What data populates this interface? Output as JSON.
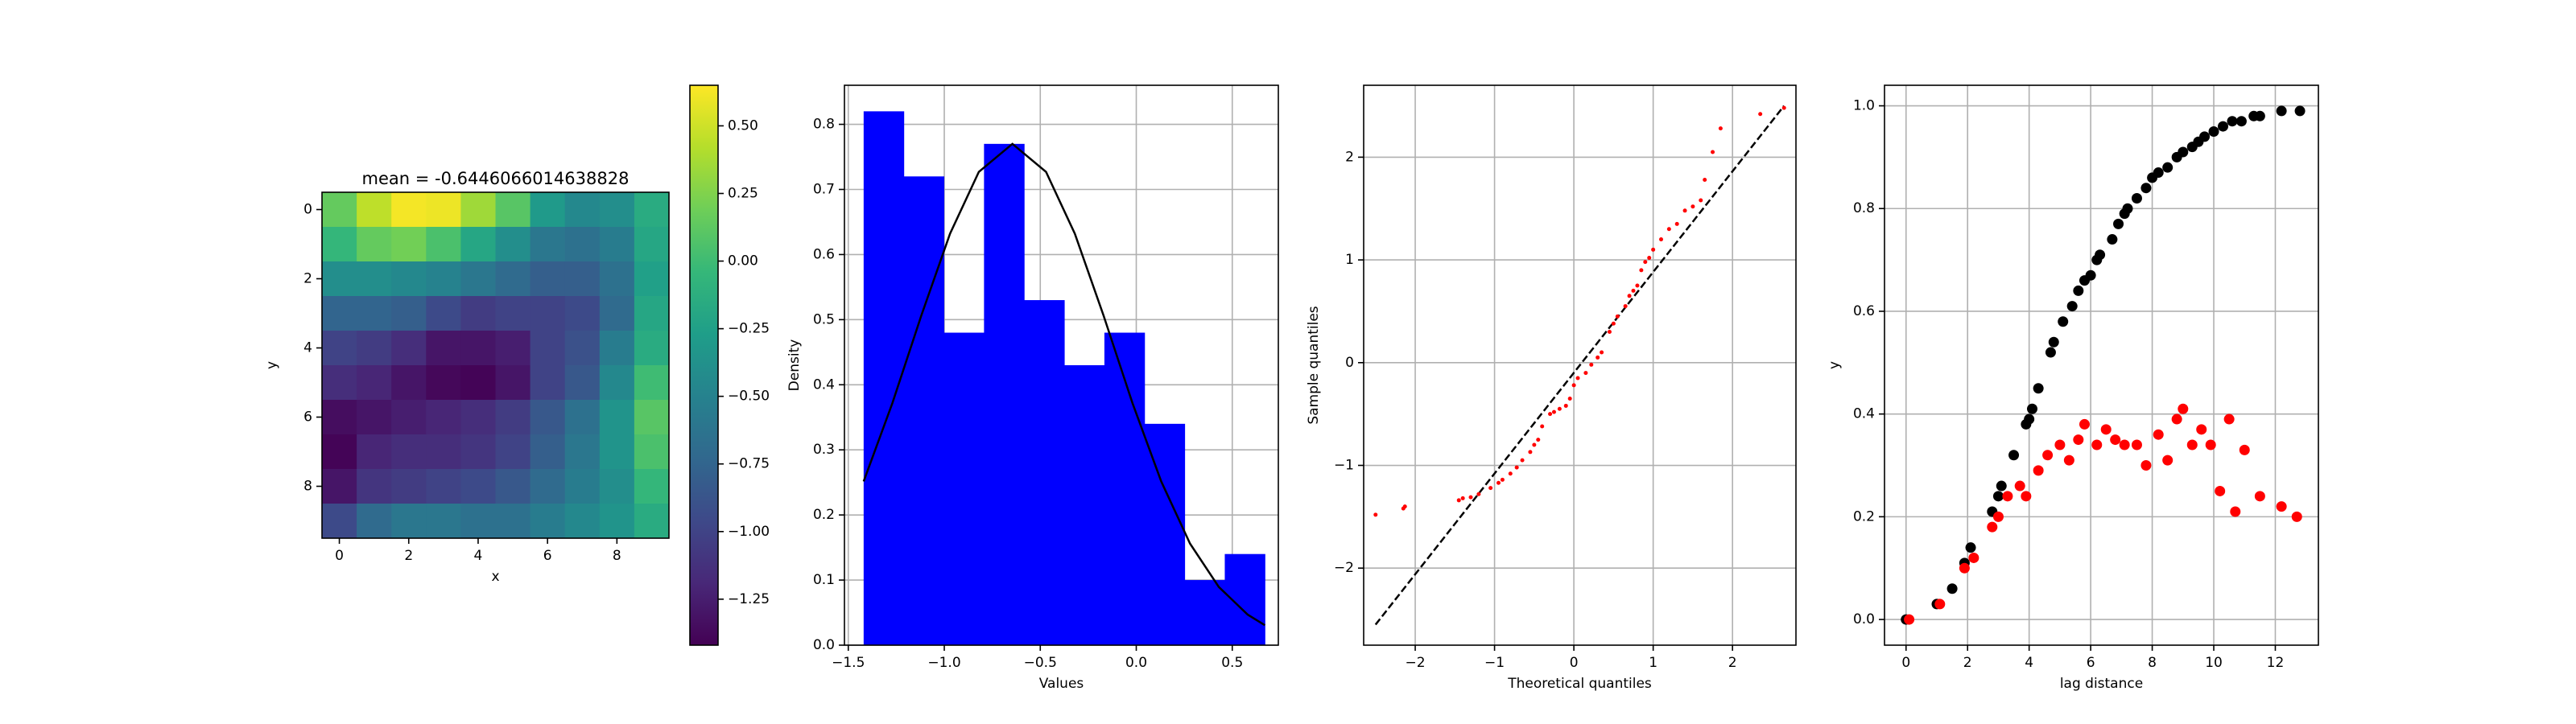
{
  "chart_data": [
    {
      "type": "heatmap",
      "title": "mean = -0.6446066014638828",
      "x_label": "x",
      "y_label": "y",
      "colormap": "viridis",
      "z": [
        [
          0.15,
          0.45,
          0.62,
          0.6,
          0.35,
          0.1,
          -0.3,
          -0.45,
          -0.4,
          -0.15
        ],
        [
          -0.05,
          0.15,
          0.2,
          0.05,
          -0.2,
          -0.4,
          -0.6,
          -0.65,
          -0.55,
          -0.2
        ],
        [
          -0.4,
          -0.4,
          -0.45,
          -0.5,
          -0.6,
          -0.7,
          -0.8,
          -0.8,
          -0.65,
          -0.25
        ],
        [
          -0.75,
          -0.75,
          -0.8,
          -0.95,
          -1.05,
          -1.0,
          -1.0,
          -0.95,
          -0.7,
          -0.2
        ],
        [
          -1.0,
          -1.05,
          -1.15,
          -1.3,
          -1.3,
          -1.25,
          -1.0,
          -0.9,
          -0.55,
          -0.15
        ],
        [
          -1.15,
          -1.2,
          -1.3,
          -1.38,
          -1.4,
          -1.3,
          -1.0,
          -0.85,
          -0.45,
          0.0
        ],
        [
          -1.35,
          -1.3,
          -1.25,
          -1.2,
          -1.15,
          -1.05,
          -0.85,
          -0.65,
          -0.35,
          0.1
        ],
        [
          -1.4,
          -1.2,
          -1.15,
          -1.15,
          -1.1,
          -1.0,
          -0.8,
          -0.6,
          -0.35,
          0.05
        ],
        [
          -1.3,
          -1.1,
          -1.05,
          -1.0,
          -0.95,
          -0.85,
          -0.7,
          -0.55,
          -0.4,
          -0.05
        ],
        [
          -0.95,
          -0.7,
          -0.6,
          -0.6,
          -0.65,
          -0.65,
          -0.55,
          -0.45,
          -0.35,
          -0.15
        ]
      ],
      "xlim": [
        -0.5,
        9.5
      ],
      "ylim": [
        9.5,
        -0.5
      ],
      "xticks": [
        0,
        2,
        4,
        6,
        8
      ],
      "yticks": [
        0,
        2,
        4,
        6,
        8
      ],
      "grid": false,
      "colorbar": {
        "lim": [
          -1.42,
          0.65
        ],
        "ticks": [
          {
            "value": 0.5,
            "label": "0.50"
          },
          {
            "value": 0.25,
            "label": "0.25"
          },
          {
            "value": 0,
            "label": "0.00"
          },
          {
            "value": -0.25,
            "label": "−0.25"
          },
          {
            "value": -0.5,
            "label": "−0.50"
          },
          {
            "value": -0.75,
            "label": "−0.75"
          },
          {
            "value": -1,
            "label": "−1.00"
          },
          {
            "value": -1.25,
            "label": "−1.25"
          }
        ]
      }
    },
    {
      "type": "histogram",
      "x_label": "Values",
      "y_label": "Density",
      "color": "#0000ff",
      "bins": [
        -1.42,
        -1.211,
        -1.002,
        -0.793,
        -0.584,
        -0.375,
        -0.166,
        0.043,
        0.252,
        0.461,
        0.67
      ],
      "values": [
        0.82,
        0.72,
        0.48,
        0.77,
        0.53,
        0.43,
        0.48,
        0.34,
        0.1,
        0.14
      ],
      "curve": {
        "color": "#000000",
        "x": [
          -1.42,
          -1.27,
          -1.12,
          -0.97,
          -0.82,
          -0.645,
          -0.47,
          -0.32,
          -0.17,
          -0.02,
          0.13,
          0.28,
          0.43,
          0.58,
          0.67
        ],
        "y": [
          0.2515,
          0.372,
          0.506,
          0.632,
          0.727,
          0.77,
          0.727,
          0.632,
          0.506,
          0.372,
          0.2515,
          0.156,
          0.0894,
          0.047,
          0.0307
        ]
      },
      "xlim": [
        -1.52,
        0.74
      ],
      "ylim": [
        0,
        0.86
      ],
      "xticks": [
        {
          "value": -1.5,
          "label": "−1.5"
        },
        {
          "value": -1,
          "label": "−1.0"
        },
        {
          "value": -0.5,
          "label": "−0.5"
        },
        {
          "value": 0,
          "label": "0.0"
        },
        {
          "value": 0.5,
          "label": "0.5"
        }
      ],
      "yticks": [
        {
          "value": 0,
          "label": "0.0"
        },
        {
          "value": 0.1,
          "label": "0.1"
        },
        {
          "value": 0.2,
          "label": "0.2"
        },
        {
          "value": 0.3,
          "label": "0.3"
        },
        {
          "value": 0.4,
          "label": "0.4"
        },
        {
          "value": 0.5,
          "label": "0.5"
        },
        {
          "value": 0.6,
          "label": "0.6"
        },
        {
          "value": 0.7,
          "label": "0.7"
        },
        {
          "value": 0.8,
          "label": "0.8"
        }
      ],
      "grid": true
    },
    {
      "type": "scatter",
      "x_label": "Theoretical quantiles",
      "y_label": "Sample quantiles",
      "marker_size": 2.5,
      "series": [
        {
          "color": "#ff0000",
          "x": [
            -2.5,
            -2.15,
            -2.13,
            -1.45,
            -1.4,
            -1.3,
            -1.2,
            -1.05,
            -0.95,
            -0.9,
            -0.8,
            -0.72,
            -0.65,
            -0.55,
            -0.5,
            -0.45,
            -0.4,
            -0.3,
            -0.25,
            -0.18,
            -0.1,
            -0.05,
            0.0,
            0.05,
            0.15,
            0.22,
            0.3,
            0.35,
            0.45,
            0.5,
            0.55,
            0.65,
            0.7,
            0.75,
            0.8,
            0.85,
            0.9,
            0.95,
            1.0,
            1.1,
            1.2,
            1.3,
            1.4,
            1.5,
            1.6,
            1.65,
            1.75,
            1.85,
            2.35,
            2.65
          ],
          "values": [
            -1.48,
            -1.42,
            -1.4,
            -1.34,
            -1.32,
            -1.31,
            -1.28,
            -1.22,
            -1.17,
            -1.14,
            -1.08,
            -1.02,
            -0.95,
            -0.87,
            -0.8,
            -0.75,
            -0.62,
            -0.5,
            -0.48,
            -0.45,
            -0.42,
            -0.35,
            -0.22,
            -0.15,
            -0.1,
            -0.02,
            0.05,
            0.1,
            0.3,
            0.38,
            0.45,
            0.55,
            0.65,
            0.7,
            0.75,
            0.9,
            0.98,
            1.02,
            1.1,
            1.2,
            1.3,
            1.35,
            1.48,
            1.52,
            1.58,
            1.78,
            2.05,
            2.28,
            2.42,
            2.48
          ]
        }
      ],
      "reference_line": {
        "color": "#000000",
        "dashed": true,
        "x": [
          -2.5,
          2.65
        ],
        "y": [
          -2.55,
          2.5
        ]
      },
      "xlim": [
        -2.65,
        2.8
      ],
      "ylim": [
        -2.75,
        2.7
      ],
      "xticks": [
        {
          "value": -2,
          "label": "−2"
        },
        {
          "value": -1,
          "label": "−1"
        },
        0,
        1,
        2
      ],
      "yticks": [
        {
          "value": -2,
          "label": "−2"
        },
        {
          "value": -1,
          "label": "−1"
        },
        0,
        1,
        2
      ],
      "grid": true
    },
    {
      "type": "scatter",
      "x_label": "lag distance",
      "y_label": "y",
      "marker_size": 6.5,
      "series": [
        {
          "color": "#000000",
          "x": [
            0,
            1.0,
            1.5,
            1.9,
            2.1,
            2.8,
            3.0,
            3.1,
            3.5,
            3.9,
            4.0,
            4.1,
            4.3,
            4.7,
            4.8,
            5.1,
            5.4,
            5.6,
            5.8,
            6.0,
            6.2,
            6.3,
            6.7,
            6.9,
            7.1,
            7.2,
            7.5,
            7.8,
            8.0,
            8.2,
            8.5,
            8.8,
            9.0,
            9.3,
            9.5,
            9.7,
            10.0,
            10.3,
            10.6,
            10.9,
            11.3,
            11.5,
            12.2,
            12.8
          ],
          "values": [
            0,
            0.03,
            0.06,
            0.11,
            0.14,
            0.21,
            0.24,
            0.26,
            0.32,
            0.38,
            0.39,
            0.41,
            0.45,
            0.52,
            0.54,
            0.58,
            0.61,
            0.64,
            0.66,
            0.67,
            0.7,
            0.71,
            0.74,
            0.77,
            0.79,
            0.8,
            0.82,
            0.84,
            0.86,
            0.87,
            0.88,
            0.9,
            0.91,
            0.92,
            0.93,
            0.94,
            0.95,
            0.96,
            0.97,
            0.97,
            0.98,
            0.98,
            0.99,
            0.99
          ]
        },
        {
          "color": "#ff0000",
          "x": [
            0.1,
            1.1,
            1.9,
            2.2,
            2.8,
            3.0,
            3.3,
            3.7,
            3.9,
            4.3,
            4.6,
            5.0,
            5.3,
            5.6,
            5.8,
            6.2,
            6.5,
            6.8,
            7.1,
            7.5,
            7.8,
            8.2,
            8.5,
            8.8,
            9.0,
            9.3,
            9.6,
            9.9,
            10.2,
            10.5,
            10.7,
            11.0,
            11.5,
            12.2,
            12.7
          ],
          "values": [
            0,
            0.03,
            0.1,
            0.12,
            0.18,
            0.2,
            0.24,
            0.26,
            0.24,
            0.29,
            0.32,
            0.34,
            0.31,
            0.35,
            0.38,
            0.34,
            0.37,
            0.35,
            0.34,
            0.34,
            0.3,
            0.36,
            0.31,
            0.39,
            0.41,
            0.34,
            0.37,
            0.34,
            0.25,
            0.39,
            0.21,
            0.33,
            0.24,
            0.22,
            0.2
          ]
        }
      ],
      "xlim": [
        -0.7,
        13.4
      ],
      "ylim": [
        -0.05,
        1.04
      ],
      "xticks": [
        0,
        2,
        4,
        6,
        8,
        10,
        12
      ],
      "yticks": [
        {
          "value": 0,
          "label": "0.0"
        },
        {
          "value": 0.2,
          "label": "0.2"
        },
        {
          "value": 0.4,
          "label": "0.4"
        },
        {
          "value": 0.6,
          "label": "0.6"
        },
        {
          "value": 0.8,
          "label": "0.8"
        },
        {
          "value": 1,
          "label": "1.0"
        }
      ],
      "grid": true
    }
  ]
}
